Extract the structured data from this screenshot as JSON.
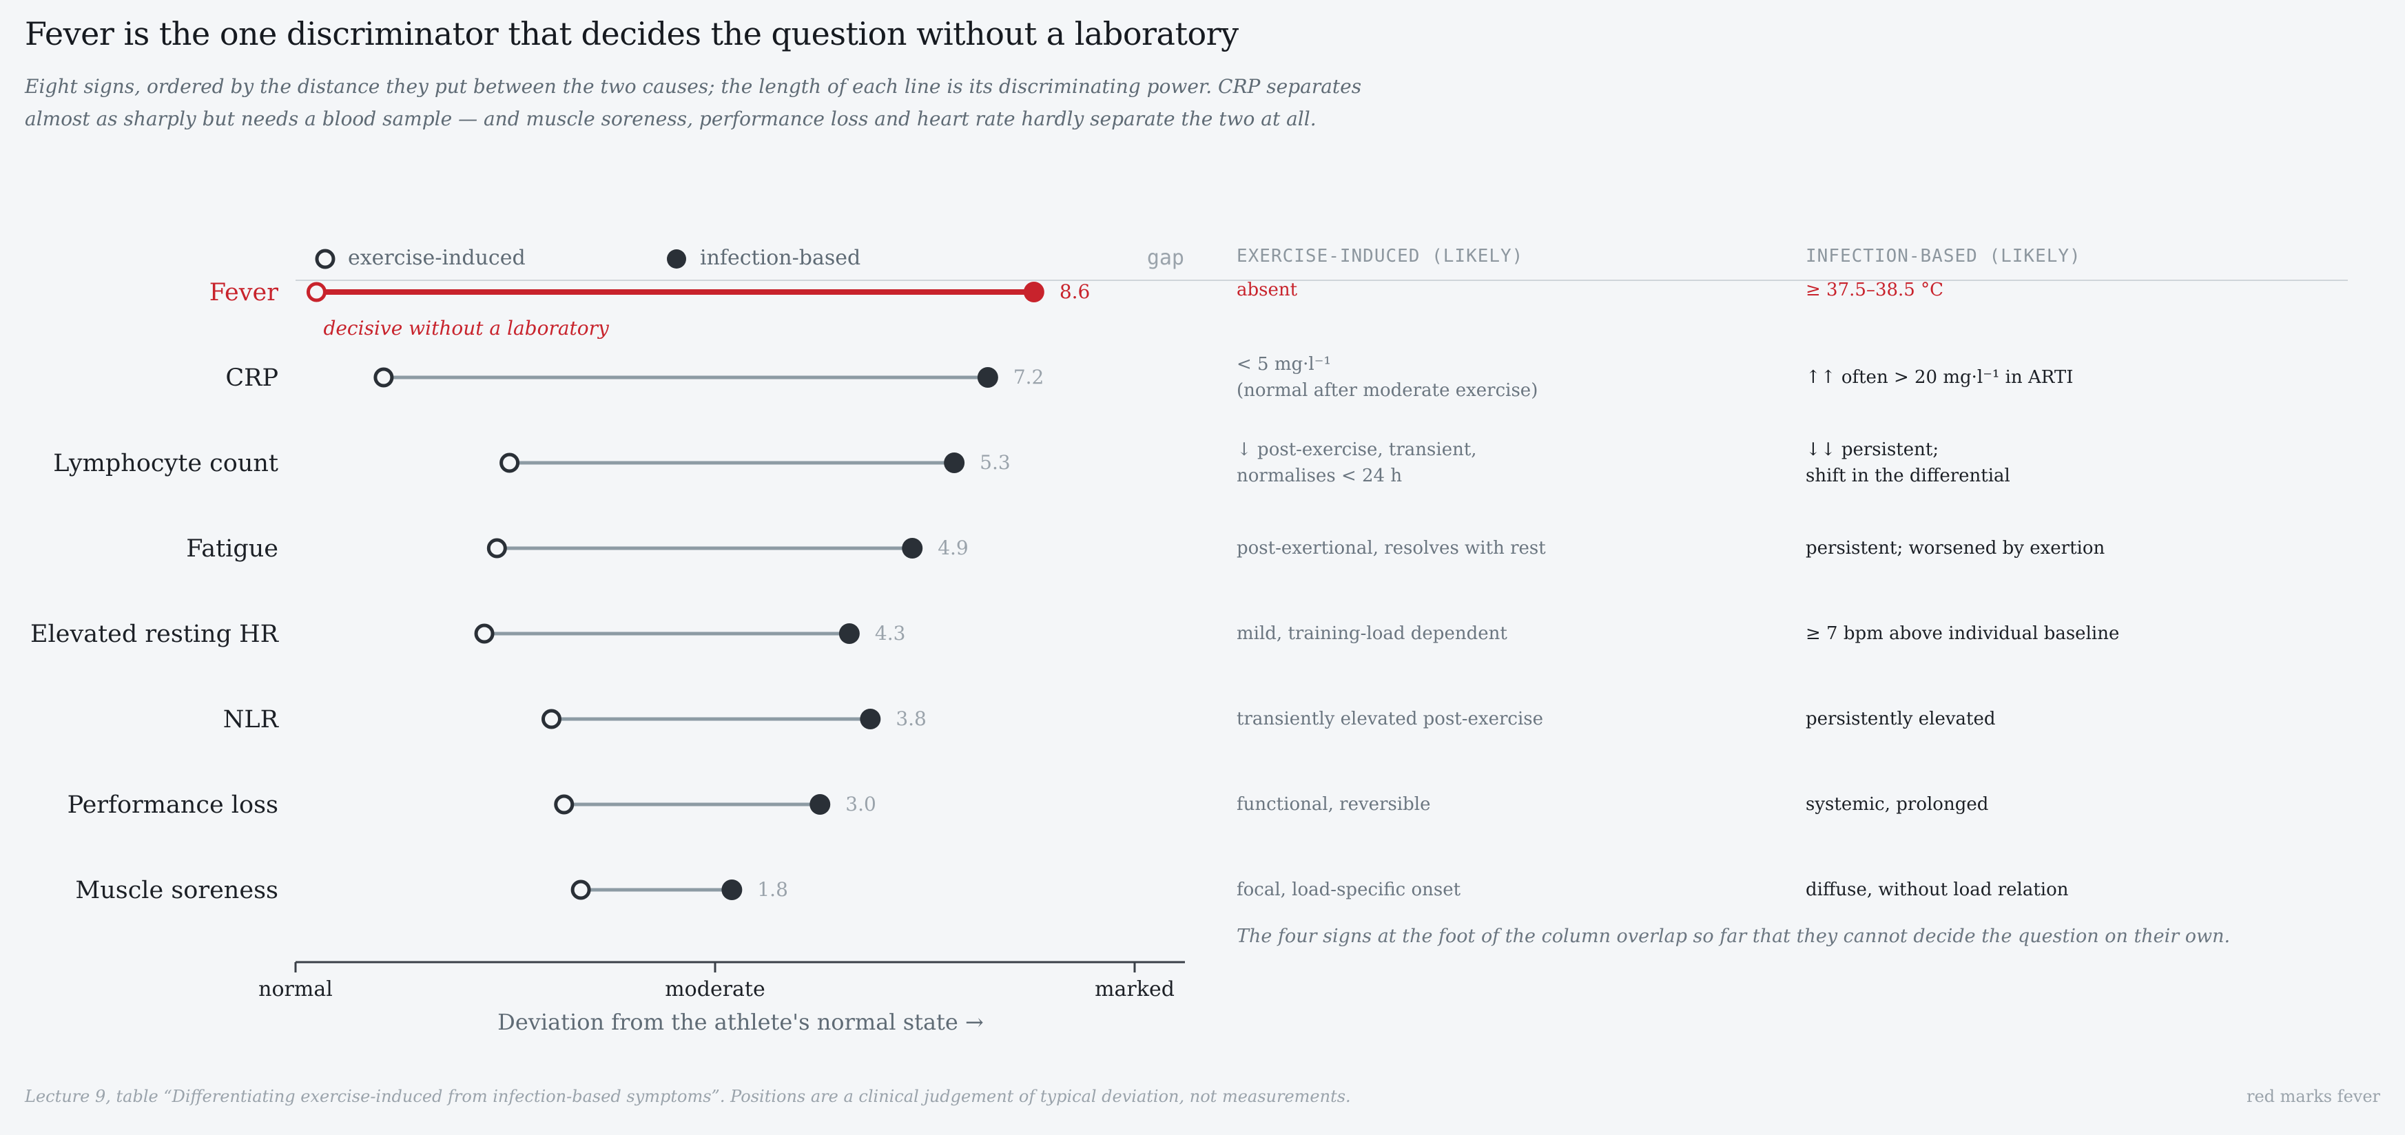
{
  "title": "Fever is the one discriminator that decides the question without a laboratory",
  "subtitle": "Eight signs, ordered by the distance they put between the two causes; the length of each line is its discriminating power. CRP separates almost as sharply but needs a blood sample — and muscle soreness, performance loss and heart rate hardly separate the two at all.",
  "colors": {
    "highlight": "#c8232c",
    "line": "#8d9ba4",
    "marker_dark": "#2a3037",
    "marker_open_fill": "#f4f6f8",
    "muted": "#9aa3ab",
    "axis": "#3a4048",
    "background": "#f4f6f8"
  },
  "chart_data": {
    "type": "dumbbell",
    "xlabel": "Deviation from the athlete's normal state →",
    "x_ticks": [
      {
        "value": 0,
        "label": "normal"
      },
      {
        "value": 1,
        "label": "moderate"
      },
      {
        "value": 2,
        "label": "marked"
      }
    ],
    "xlim": [
      0,
      2.1
    ],
    "legend": {
      "exercise": "exercise-induced",
      "infection": "infection-based",
      "gap": "gap"
    },
    "series_names": [
      "exercise-induced",
      "infection-based"
    ],
    "highlight_annotation": "decisive without a laboratory",
    "rows": [
      {
        "label": "Fever",
        "exercise": 0.05,
        "infection": 1.76,
        "gap": "8.6",
        "highlight": true
      },
      {
        "label": "CRP",
        "exercise": 0.21,
        "infection": 1.65,
        "gap": "7.2",
        "highlight": false
      },
      {
        "label": "Lymphocyte count",
        "exercise": 0.51,
        "infection": 1.57,
        "gap": "5.3",
        "highlight": false
      },
      {
        "label": "Fatigue",
        "exercise": 0.48,
        "infection": 1.47,
        "gap": "4.9",
        "highlight": false
      },
      {
        "label": "Elevated resting HR",
        "exercise": 0.45,
        "infection": 1.32,
        "gap": "4.3",
        "highlight": false
      },
      {
        "label": "NLR",
        "exercise": 0.61,
        "infection": 1.37,
        "gap": "3.8",
        "highlight": false
      },
      {
        "label": "Performance loss",
        "exercise": 0.64,
        "infection": 1.25,
        "gap": "3.0",
        "highlight": false
      },
      {
        "label": "Muscle soreness",
        "exercise": 0.68,
        "infection": 1.04,
        "gap": "1.8",
        "highlight": false
      }
    ]
  },
  "table": {
    "header_exercise": "EXERCISE-INDUCED (LIKELY)",
    "header_infection": "INFECTION-BASED (LIKELY)",
    "rows": [
      {
        "exercise": [
          "absent"
        ],
        "infection": [
          "≥ 37.5–38.5 °C"
        ]
      },
      {
        "exercise": [
          "< 5 mg·l⁻¹",
          "(normal after moderate exercise)"
        ],
        "infection": [
          "↑↑  often > 20 mg·l⁻¹ in ARTI"
        ]
      },
      {
        "exercise": [
          "↓ post-exercise, transient,",
          "normalises < 24 h"
        ],
        "infection": [
          "↓↓ persistent;",
          "shift in the differential"
        ]
      },
      {
        "exercise": [
          "post-exertional, resolves with rest"
        ],
        "infection": [
          "persistent; worsened by exertion"
        ]
      },
      {
        "exercise": [
          "mild, training-load dependent"
        ],
        "infection": [
          "≥ 7 bpm above individual baseline"
        ]
      },
      {
        "exercise": [
          "transiently elevated post-exercise"
        ],
        "infection": [
          "persistently elevated"
        ]
      },
      {
        "exercise": [
          "functional, reversible"
        ],
        "infection": [
          "systemic, prolonged"
        ]
      },
      {
        "exercise": [
          "focal, load-specific onset"
        ],
        "infection": [
          "diffuse, without load relation"
        ]
      }
    ],
    "note": "The four signs at the foot of the column overlap so far that they cannot decide the question on their own."
  },
  "footer": {
    "source": "Lecture 9, table “Differentiating exercise-induced from infection-based symptoms”. Positions are a clinical judgement of typical deviation, not measurements.",
    "key": "red marks fever"
  }
}
